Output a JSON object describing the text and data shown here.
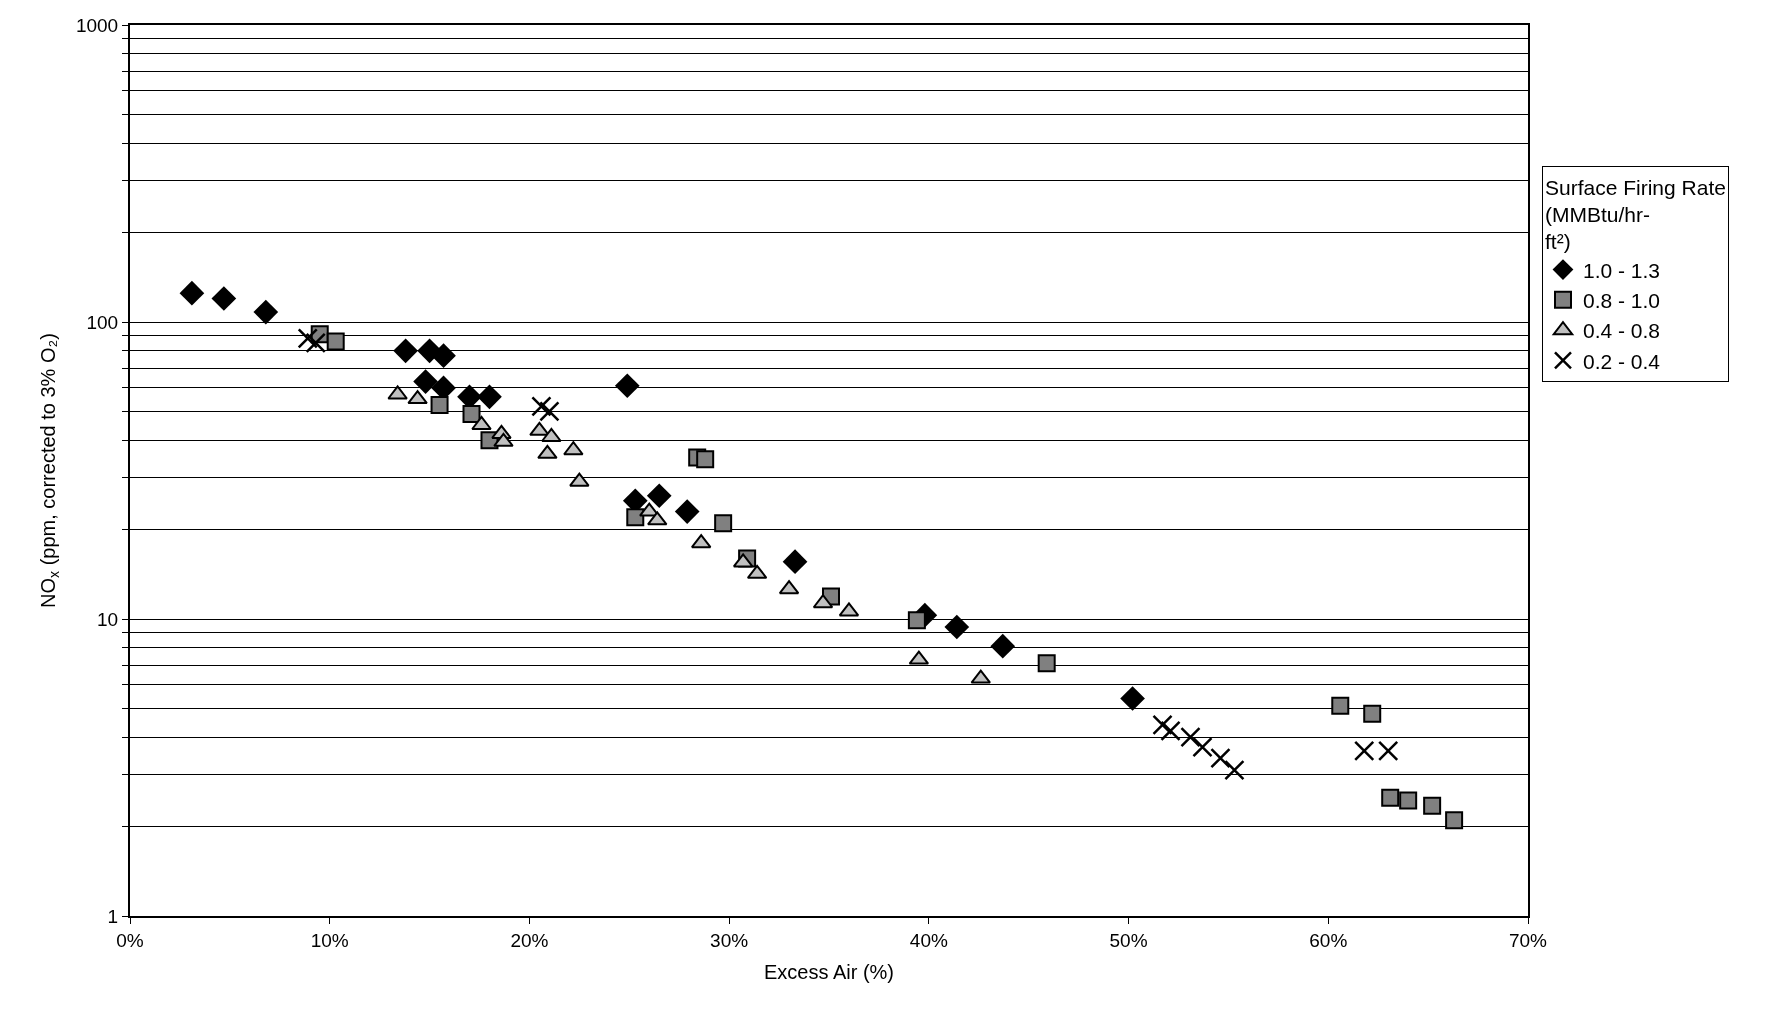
{
  "chart_data": {
    "type": "scatter",
    "xlabel": "Excess Air (%)",
    "ylabel": "NO$_{x}$ (ppm, corrected to 3% O₂)",
    "legend_title": "Surface Firing Rate (MMBtu/hr-ft²)",
    "legend": "right",
    "log": "y",
    "grid": "y",
    "xlim": [
      0,
      70
    ],
    "xticks": [
      {
        "value": 0,
        "label": "0%"
      },
      {
        "value": 10,
        "label": "10%"
      },
      {
        "value": 20,
        "label": "20%"
      },
      {
        "value": 30,
        "label": "30%"
      },
      {
        "value": 40,
        "label": "40%"
      },
      {
        "value": 50,
        "label": "50%"
      },
      {
        "value": 60,
        "label": "60%"
      },
      {
        "value": 70,
        "label": "70%"
      }
    ],
    "ylim": [
      1,
      1000
    ],
    "yticks": [
      1,
      {
        "value": 2,
        "label": null
      },
      {
        "value": 3,
        "label": null
      },
      {
        "value": 4,
        "label": null
      },
      {
        "value": 5,
        "label": null
      },
      {
        "value": 6,
        "label": null
      },
      {
        "value": 7,
        "label": null
      },
      {
        "value": 8,
        "label": null
      },
      {
        "value": 9,
        "label": null
      },
      10,
      {
        "value": 20,
        "label": null
      },
      {
        "value": 30,
        "label": null
      },
      {
        "value": 40,
        "label": null
      },
      {
        "value": 50,
        "label": null
      },
      {
        "value": 60,
        "label": null
      },
      {
        "value": 70,
        "label": null
      },
      {
        "value": 80,
        "label": null
      },
      {
        "value": 90,
        "label": null
      },
      100,
      {
        "value": 200,
        "label": null
      },
      {
        "value": 300,
        "label": null
      },
      {
        "value": 400,
        "label": null
      },
      {
        "value": 500,
        "label": null
      },
      {
        "value": 600,
        "label": null
      },
      {
        "value": 700,
        "label": null
      },
      {
        "value": 800,
        "label": null
      },
      {
        "value": 900,
        "label": null
      },
      1000
    ],
    "series": [
      {
        "name": "1.0 - 1.3",
        "color": "#000000",
        "marker": "diamond",
        "x": [
          3.1,
          4.7,
          6.8,
          9.3,
          13.8,
          15,
          15.7,
          14.8,
          15.7,
          17,
          18,
          24.9,
          25.3,
          26.5,
          27.9,
          29.8,
          33.3,
          39.8,
          41.4,
          43.7,
          50.2
        ],
        "values": [
          125,
          120,
          108,
          null,
          80,
          80,
          77,
          63,
          60,
          56,
          56,
          61,
          25,
          26,
          23,
          null,
          15.6,
          10.3,
          9.4,
          8.1,
          5.4
        ]
      },
      {
        "name": "0.8 - 1.0",
        "color": "#808080",
        "marker": "square",
        "x": [
          9.5,
          10.3,
          15.5,
          17.1,
          18,
          18.6,
          25.3,
          28.4,
          28.8,
          29.6,
          29.7,
          30.9,
          35.1,
          39.4,
          45.9,
          60.6,
          62.2,
          63.1,
          64,
          65.2,
          66.1,
          66.3
        ],
        "values": [
          91,
          86,
          52.5,
          49,
          40,
          null,
          22,
          35,
          34.5,
          null,
          21,
          16,
          11.9,
          9.9,
          7.1,
          5.1,
          4.8,
          2.5,
          2.45,
          2.35,
          null,
          2.1
        ]
      },
      {
        "name": "0.4 - 0.8",
        "color": "#c0c0c0",
        "marker": "triangle",
        "x": [
          13.4,
          14.4,
          17.6,
          18.6,
          18.7,
          20.5,
          20.9,
          21.1,
          22.2,
          22.5,
          26,
          26.4,
          28.6,
          30.7,
          31.4,
          33,
          34.7,
          36,
          39.5,
          42.6
        ],
        "values": [
          57,
          55,
          45,
          42,
          39.5,
          43,
          36,
          41,
          37,
          29,
          23,
          21.5,
          18,
          15.5,
          14.2,
          12.6,
          11.3,
          10.6,
          7.3,
          6.3
        ]
      },
      {
        "name": "0.2 - 0.4",
        "color": "#000000",
        "marker": "cross",
        "x": [
          8.9,
          9.3,
          20.6,
          21,
          51.7,
          52.1,
          53.1,
          53.7,
          54.6,
          55.3,
          61.8,
          63
        ],
        "values": [
          88,
          85,
          52,
          50,
          4.4,
          4.2,
          4,
          3.7,
          3.4,
          3.1,
          3.6,
          3.6
        ]
      }
    ]
  }
}
